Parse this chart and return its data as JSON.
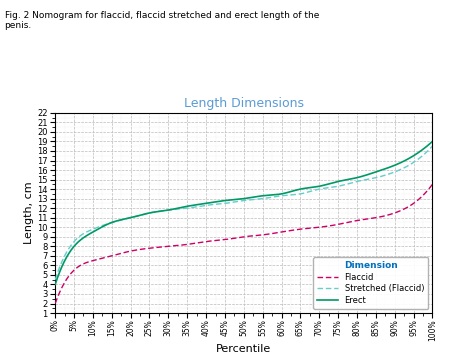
{
  "title": "Length Dimensions",
  "xlabel": "Percentile",
  "ylabel": "Length, cm",
  "ylim": [
    1,
    22
  ],
  "yticks": [
    1,
    2,
    3,
    4,
    5,
    6,
    7,
    8,
    9,
    10,
    11,
    12,
    13,
    14,
    15,
    16,
    17,
    18,
    19,
    20,
    21,
    22
  ],
  "xtick_labels": [
    "0%",
    "5%",
    "10%",
    "15%",
    "20%",
    "25%",
    "30%",
    "35%",
    "40%",
    "45%",
    "50%",
    "55%",
    "60%",
    "65%",
    "70%",
    "75%",
    "80%",
    "85%",
    "90%",
    "95%",
    "100%"
  ],
  "title_color": "#5B9BD5",
  "flaccid_color": "#CC0066",
  "stretched_color": "#66CCCC",
  "erect_color": "#009966",
  "background_color": "#FFFFFF",
  "legend_title": "Dimension",
  "legend_title_color": "#0070C0",
  "fig_caption": "Fig. 2 Nomogram for flaccid, flaccid stretched and erect length of the\npenis.",
  "flaccid_x": [
    0,
    5,
    10,
    15,
    20,
    25,
    30,
    35,
    40,
    45,
    50,
    55,
    60,
    65,
    70,
    75,
    80,
    85,
    90,
    95,
    100
  ],
  "flaccid_y": [
    2.0,
    5.5,
    6.5,
    7.0,
    7.5,
    7.8,
    8.0,
    8.2,
    8.5,
    8.7,
    9.0,
    9.2,
    9.5,
    9.8,
    10.0,
    10.3,
    10.7,
    11.0,
    11.5,
    12.5,
    14.5
  ],
  "stretched_x": [
    0,
    5,
    10,
    15,
    20,
    25,
    30,
    35,
    40,
    45,
    50,
    55,
    60,
    65,
    70,
    75,
    80,
    85,
    90,
    95,
    100
  ],
  "stretched_y": [
    4.5,
    8.5,
    9.8,
    10.5,
    11.0,
    11.5,
    11.8,
    12.0,
    12.3,
    12.5,
    12.8,
    13.0,
    13.3,
    13.5,
    14.0,
    14.3,
    14.8,
    15.2,
    15.8,
    16.8,
    18.5
  ],
  "erect_x": [
    0,
    5,
    10,
    15,
    20,
    25,
    30,
    35,
    40,
    45,
    50,
    55,
    60,
    65,
    70,
    75,
    80,
    85,
    90,
    95,
    100
  ],
  "erect_y": [
    4.0,
    8.0,
    9.5,
    10.5,
    11.0,
    11.5,
    11.8,
    12.2,
    12.5,
    12.8,
    13.0,
    13.3,
    13.5,
    14.0,
    14.3,
    14.8,
    15.2,
    15.8,
    16.5,
    17.5,
    19.0
  ]
}
